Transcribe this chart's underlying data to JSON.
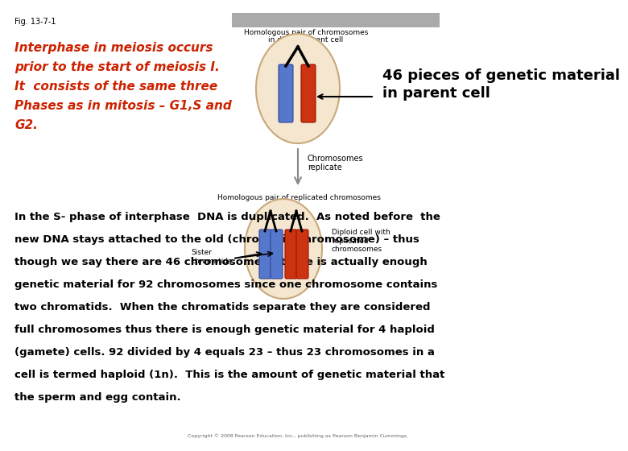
{
  "fig_label": "Fig. 13-7-1",
  "title_bar_color": "#aaaaaa",
  "header_label1": "Homologous pair of chromosomes",
  "header_label2": "in diploid parent cell",
  "red_text_lines": [
    "Interphase in meiosis occurs",
    "prior to the start of meiosis I.",
    "It  consists of the same three",
    "Phases as in mitosis – G1,S and",
    "G2."
  ],
  "bold_label_46": "46 pieces of genetic material\nin parent cell",
  "chromo_replicate_label": "Chromosomes\nreplicate",
  "homologous_replicated_label": "Homologous pair of replicated chromosomes",
  "sister_chromatids_label": "Sister\nchromatids",
  "diploid_replicated_label": "Diploid cell with\nreplicated\nchromosomes",
  "cell_fill": "#f5e6d0",
  "cell_edge": "#c8a87a",
  "blue_color": "#5577cc",
  "red_color": "#cc3311",
  "white_bg": "#ffffff",
  "bottom_text_lines": [
    "In the S- phase of interphase  DNA is duplicated.  As noted before  the",
    "new DNA stays attached to the old (chromatid/chromosome) – thus",
    "though we say there are 46 chromosomes – there is actually enough",
    "genetic material for 92 chromosomes since one chromosome contains",
    "two chromatids.  When the chromatids separate they are considered",
    "full chromosomes thus there is enough genetic material for 4 haploid",
    "(gamete) cells. 92 divided by 4 equals 23 – thus 23 chromosomes in a",
    "cell is termed haploid (1n).  This is the amount of genetic material that",
    "the sperm and egg contain."
  ],
  "copyright_text": "Copyright © 2008 Pearson Education, Inc., publishing as Pearson Benjamin Cummings."
}
